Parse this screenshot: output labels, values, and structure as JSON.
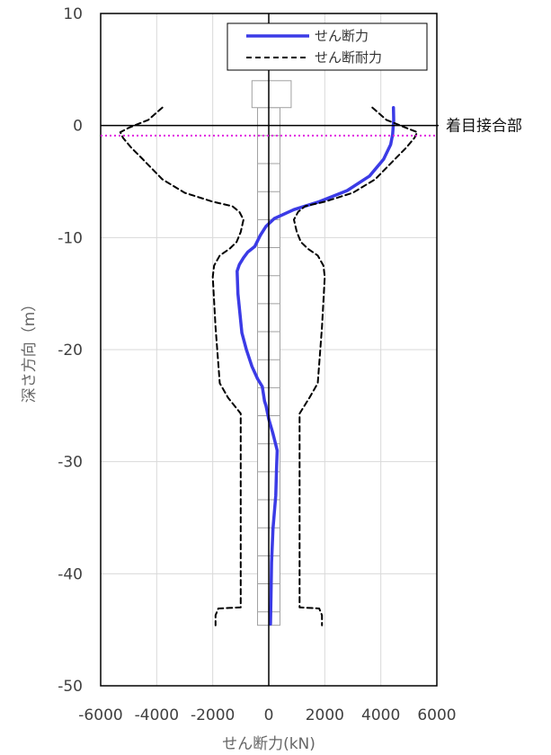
{
  "chart_data": {
    "type": "line",
    "title": "",
    "xlabel": "せん断力(kN)",
    "ylabel": "深さ方向（m）",
    "xlim": [
      -6000,
      6000
    ],
    "ylim": [
      -50,
      10
    ],
    "x_ticks": [
      "-6000",
      "-4000",
      "-2000",
      "0",
      "2000",
      "4000",
      "6000"
    ],
    "y_ticks": [
      "10",
      "0",
      "-10",
      "-20",
      "-30",
      "-40",
      "-50"
    ],
    "x_tick_values": [
      -6000,
      -4000,
      -2000,
      0,
      2000,
      4000,
      6000
    ],
    "y_tick_values": [
      10,
      0,
      -10,
      -20,
      -30,
      -40,
      -50
    ],
    "grid": true,
    "legend_position": "top-right",
    "annotation": "着目接合部",
    "annotation_depth": -0.9,
    "colors": {
      "shear": "#3b3be6",
      "capacity": "#000000",
      "marker": "#e020e0",
      "grid": "#d9d9d9"
    },
    "series": [
      {
        "name": "せん断力",
        "style": "solid",
        "points": [
          [
            4450,
            1.6
          ],
          [
            4460,
            0.5
          ],
          [
            4420,
            -0.8
          ],
          [
            4350,
            -1.7
          ],
          [
            4100,
            -3.0
          ],
          [
            3600,
            -4.5
          ],
          [
            2800,
            -5.8
          ],
          [
            1800,
            -6.8
          ],
          [
            900,
            -7.5
          ],
          [
            200,
            -8.3
          ],
          [
            -100,
            -9.0
          ],
          [
            -300,
            -9.8
          ],
          [
            -500,
            -10.8
          ],
          [
            -750,
            -11.3
          ],
          [
            -900,
            -11.8
          ],
          [
            -1050,
            -12.4
          ],
          [
            -1130,
            -13.0
          ],
          [
            -1100,
            -15.0
          ],
          [
            -1020,
            -17.0
          ],
          [
            -960,
            -18.5
          ],
          [
            -800,
            -20.0
          ],
          [
            -600,
            -21.5
          ],
          [
            -400,
            -22.6
          ],
          [
            -230,
            -23.3
          ],
          [
            -150,
            -24.6
          ],
          [
            -100,
            -25.0
          ],
          [
            0,
            -26.2
          ],
          [
            150,
            -27.5
          ],
          [
            300,
            -29.0
          ],
          [
            280,
            -30.5
          ],
          [
            250,
            -33.0
          ],
          [
            150,
            -36.0
          ],
          [
            100,
            -39.0
          ],
          [
            80,
            -42.0
          ],
          [
            60,
            -44.5
          ]
        ]
      },
      {
        "name": "せん断耐力",
        "style": "dashed",
        "points": [
          [
            -3800,
            1.6
          ],
          [
            -4300,
            0.5
          ],
          [
            -5000,
            -0.2
          ],
          [
            -5300,
            -0.6
          ],
          [
            -5200,
            -1.1
          ],
          [
            -4900,
            -2.0
          ],
          [
            -4500,
            -3.0
          ],
          [
            -3800,
            -4.8
          ],
          [
            -3000,
            -6.0
          ],
          [
            -2000,
            -6.8
          ],
          [
            -1300,
            -7.2
          ],
          [
            -1050,
            -7.7
          ],
          [
            -900,
            -8.4
          ],
          [
            -1000,
            -9.5
          ],
          [
            -1150,
            -10.4
          ],
          [
            -1400,
            -11.0
          ],
          [
            -1750,
            -11.6
          ],
          [
            -1950,
            -12.5
          ],
          [
            -2000,
            -13.5
          ],
          [
            -1900,
            -18.0
          ],
          [
            -1750,
            -23.0
          ],
          [
            -1450,
            -24.3
          ],
          [
            -1000,
            -25.7
          ],
          [
            -1000,
            -30.0
          ],
          [
            -1000,
            -36.0
          ],
          [
            -1000,
            -42.2
          ],
          [
            -1000,
            -43.0
          ],
          [
            -1800,
            -43.1
          ],
          [
            -1900,
            -43.7
          ],
          [
            -1900,
            -44.6
          ]
        ]
      },
      {
        "name": "",
        "style": "dashed",
        "points": [
          [
            3700,
            1.6
          ],
          [
            4200,
            0.5
          ],
          [
            4900,
            -0.2
          ],
          [
            5300,
            -0.6
          ],
          [
            5200,
            -1.1
          ],
          [
            4900,
            -2.0
          ],
          [
            4500,
            -3.0
          ],
          [
            3800,
            -4.8
          ],
          [
            3000,
            -6.0
          ],
          [
            2000,
            -6.8
          ],
          [
            1300,
            -7.2
          ],
          [
            1050,
            -7.7
          ],
          [
            900,
            -8.4
          ],
          [
            1000,
            -9.5
          ],
          [
            1150,
            -10.4
          ],
          [
            1400,
            -11.0
          ],
          [
            1750,
            -11.6
          ],
          [
            1950,
            -12.5
          ],
          [
            2000,
            -13.5
          ],
          [
            1900,
            -18.0
          ],
          [
            1750,
            -23.0
          ],
          [
            1450,
            -24.3
          ],
          [
            1100,
            -25.7
          ],
          [
            1100,
            -30.0
          ],
          [
            1100,
            -36.0
          ],
          [
            1100,
            -42.2
          ],
          [
            1100,
            -43.0
          ],
          [
            1800,
            -43.1
          ],
          [
            1900,
            -43.7
          ],
          [
            1900,
            -44.6
          ]
        ]
      }
    ],
    "pile": {
      "x_min": -400,
      "x_max": 400,
      "top": 1.6,
      "bottom": -44.6,
      "segment_interval": 2.5
    },
    "pile_cap": {
      "x_min": -600,
      "x_max": 800,
      "top": 4.0,
      "bottom": 1.6
    }
  }
}
